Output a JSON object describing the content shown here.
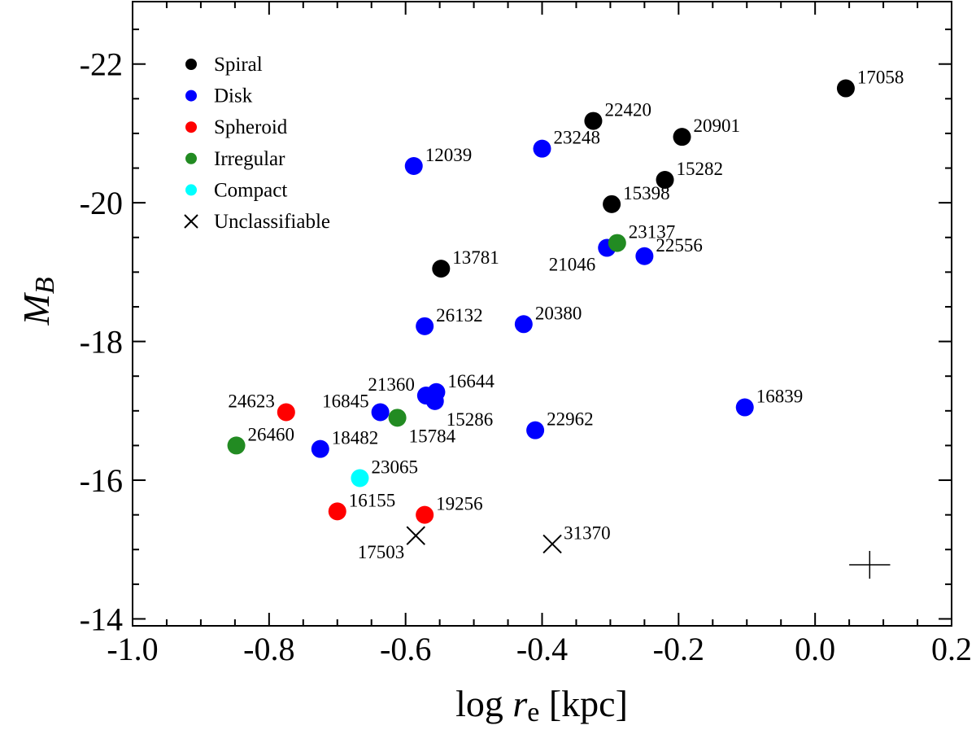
{
  "chart_data": {
    "type": "scatter",
    "xlabel_prefix": "log ",
    "xlabel_var": "r",
    "xlabel_sub": "e",
    "xlabel_suffix": " [kpc]",
    "ylabel_var": "M",
    "ylabel_sub": "B",
    "xlim": [
      -1.0,
      0.2
    ],
    "ylim": [
      -13.9,
      -22.9
    ],
    "x_ticks": [
      {
        "value": -1.0,
        "label": "-1.0"
      },
      {
        "value": -0.8,
        "label": "-0.8"
      },
      {
        "value": -0.6,
        "label": "-0.6"
      },
      {
        "value": -0.4,
        "label": "-0.4"
      },
      {
        "value": -0.2,
        "label": "-0.2"
      },
      {
        "value": 0.0,
        "label": "0.0"
      },
      {
        "value": 0.2,
        "label": "0.2"
      }
    ],
    "y_ticks": [
      {
        "value": -14,
        "label": "-14"
      },
      {
        "value": -16,
        "label": "-16"
      },
      {
        "value": -18,
        "label": "-18"
      },
      {
        "value": -20,
        "label": "-20"
      },
      {
        "value": -22,
        "label": "-22"
      }
    ],
    "legend": [
      {
        "name": "Spiral",
        "color": "#000000",
        "marker": "circle"
      },
      {
        "name": "Disk",
        "color": "#0000ff",
        "marker": "circle"
      },
      {
        "name": "Spheroid",
        "color": "#ff0000",
        "marker": "circle"
      },
      {
        "name": "Irregular",
        "color": "#228b22",
        "marker": "circle"
      },
      {
        "name": "Compact",
        "color": "#00ffff",
        "marker": "circle"
      },
      {
        "name": "Unclassifiable",
        "color": "#000000",
        "marker": "x"
      }
    ],
    "points": [
      {
        "id": "17058",
        "x": 0.045,
        "y": -21.65,
        "class": "Spiral",
        "label_pos": "ur"
      },
      {
        "id": "22420",
        "x": -0.325,
        "y": -21.18,
        "class": "Spiral",
        "label_pos": "ur"
      },
      {
        "id": "20901",
        "x": -0.195,
        "y": -20.95,
        "class": "Spiral",
        "label_pos": "ur"
      },
      {
        "id": "15282",
        "x": -0.22,
        "y": -20.33,
        "class": "Spiral",
        "label_pos": "ur"
      },
      {
        "id": "15398",
        "x": -0.298,
        "y": -19.98,
        "class": "Spiral",
        "label_pos": "ur"
      },
      {
        "id": "13781",
        "x": -0.548,
        "y": -19.05,
        "class": "Spiral",
        "label_pos": "ur"
      },
      {
        "id": "23248",
        "x": -0.4,
        "y": -20.78,
        "class": "Disk",
        "label_pos": "ur"
      },
      {
        "id": "12039",
        "x": -0.588,
        "y": -20.53,
        "class": "Disk",
        "label_pos": "ur"
      },
      {
        "id": "21046",
        "x": -0.305,
        "y": -19.35,
        "class": "Disk",
        "label_pos": "bl"
      },
      {
        "id": "22556",
        "x": -0.25,
        "y": -19.23,
        "class": "Disk",
        "label_pos": "ur"
      },
      {
        "id": "26132",
        "x": -0.572,
        "y": -18.22,
        "class": "Disk",
        "label_pos": "ur"
      },
      {
        "id": "20380",
        "x": -0.427,
        "y": -18.25,
        "class": "Disk",
        "label_pos": "ur"
      },
      {
        "id": "21360",
        "x": -0.57,
        "y": -17.22,
        "class": "Disk",
        "label_pos": "ul"
      },
      {
        "id": "16644",
        "x": -0.555,
        "y": -17.27,
        "class": "Disk",
        "label_pos": "ur"
      },
      {
        "id": "15286",
        "x": -0.557,
        "y": -17.14,
        "class": "Disk",
        "label_pos": "br"
      },
      {
        "id": "16845",
        "x": -0.637,
        "y": -16.98,
        "class": "Disk",
        "label_pos": "ul"
      },
      {
        "id": "22962",
        "x": -0.41,
        "y": -16.72,
        "class": "Disk",
        "label_pos": "ur"
      },
      {
        "id": "16839",
        "x": -0.103,
        "y": -17.05,
        "class": "Disk",
        "label_pos": "ur"
      },
      {
        "id": "18482",
        "x": -0.725,
        "y": -16.45,
        "class": "Disk",
        "label_pos": "ur"
      },
      {
        "id": "24623",
        "x": -0.775,
        "y": -16.98,
        "class": "Spheroid",
        "label_pos": "ul"
      },
      {
        "id": "16155",
        "x": -0.7,
        "y": -15.55,
        "class": "Spheroid",
        "label_pos": "ur"
      },
      {
        "id": "19256",
        "x": -0.572,
        "y": -15.5,
        "class": "Spheroid",
        "label_pos": "ur"
      },
      {
        "id": "23137",
        "x": -0.29,
        "y": -19.42,
        "class": "Irregular",
        "label_pos": "ur"
      },
      {
        "id": "15784",
        "x": -0.612,
        "y": -16.9,
        "class": "Irregular",
        "label_pos": "br"
      },
      {
        "id": "26460",
        "x": -0.848,
        "y": -16.5,
        "class": "Irregular",
        "label_pos": "ur"
      },
      {
        "id": "23065",
        "x": -0.667,
        "y": -16.03,
        "class": "Compact",
        "label_pos": "ur"
      },
      {
        "id": "17503",
        "x": -0.585,
        "y": -15.2,
        "class": "Unclassifiable",
        "label_pos": "bl"
      },
      {
        "id": "31370",
        "x": -0.385,
        "y": -15.08,
        "class": "Unclassifiable",
        "label_pos": "ur"
      }
    ],
    "error_bar": {
      "x": 0.08,
      "y": -14.78,
      "dx": 0.03,
      "dy": 0.2
    }
  }
}
